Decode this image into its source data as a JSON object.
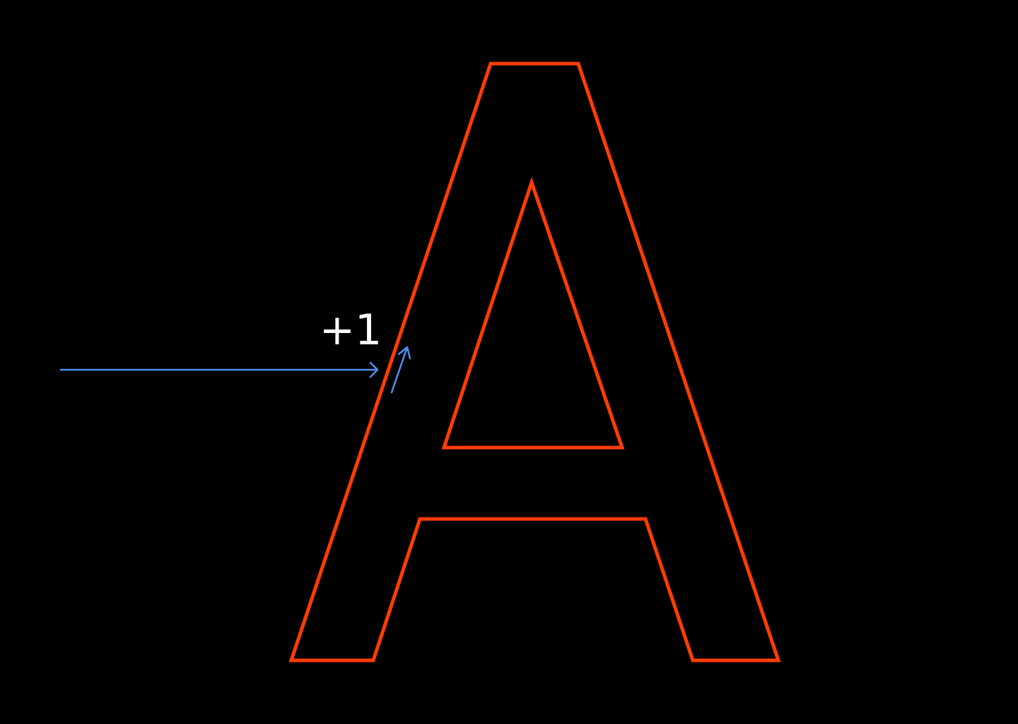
{
  "colors": {
    "background": "#000000",
    "glyph_outline": "#ff3d00",
    "ray": "#4f8ff0",
    "label": "#ffffff"
  },
  "glyph": {
    "character": "A",
    "contours": 2
  },
  "annotation": {
    "winding_label": "+1"
  },
  "icons": {
    "ray_arrow": "arrow-right-icon",
    "direction_arrow": "arrow-up-right-icon"
  }
}
